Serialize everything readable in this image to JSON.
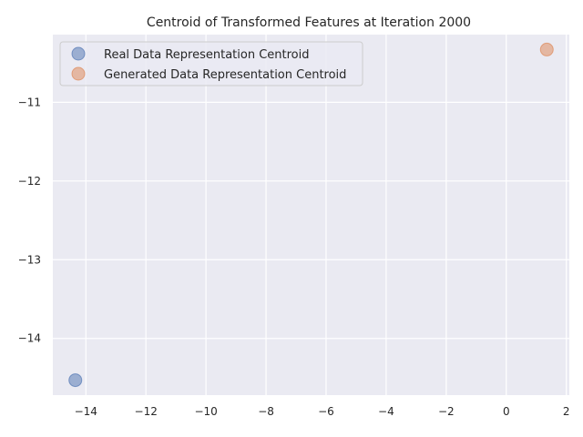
{
  "chart_data": {
    "type": "scatter",
    "title": "Centroid of Transformed Features at Iteration 2000",
    "xlabel": "",
    "ylabel": "",
    "xlim": [
      -15.1,
      2.1
    ],
    "ylim": [
      -14.72,
      -10.14
    ],
    "x_ticks": [
      -14,
      -12,
      -10,
      -8,
      -6,
      -4,
      -2,
      0,
      2
    ],
    "y_ticks": [
      -14,
      -13,
      -12,
      -11
    ],
    "grid": true,
    "legend_position": "upper-left",
    "series": [
      {
        "name": "Real Data Representation Centroid",
        "color": "#4c72b0",
        "points": [
          [
            -14.35,
            -14.53
          ]
        ]
      },
      {
        "name": "Generated Data Representation Centroid",
        "color": "#dd8452",
        "points": [
          [
            1.35,
            -10.33
          ]
        ]
      }
    ]
  }
}
